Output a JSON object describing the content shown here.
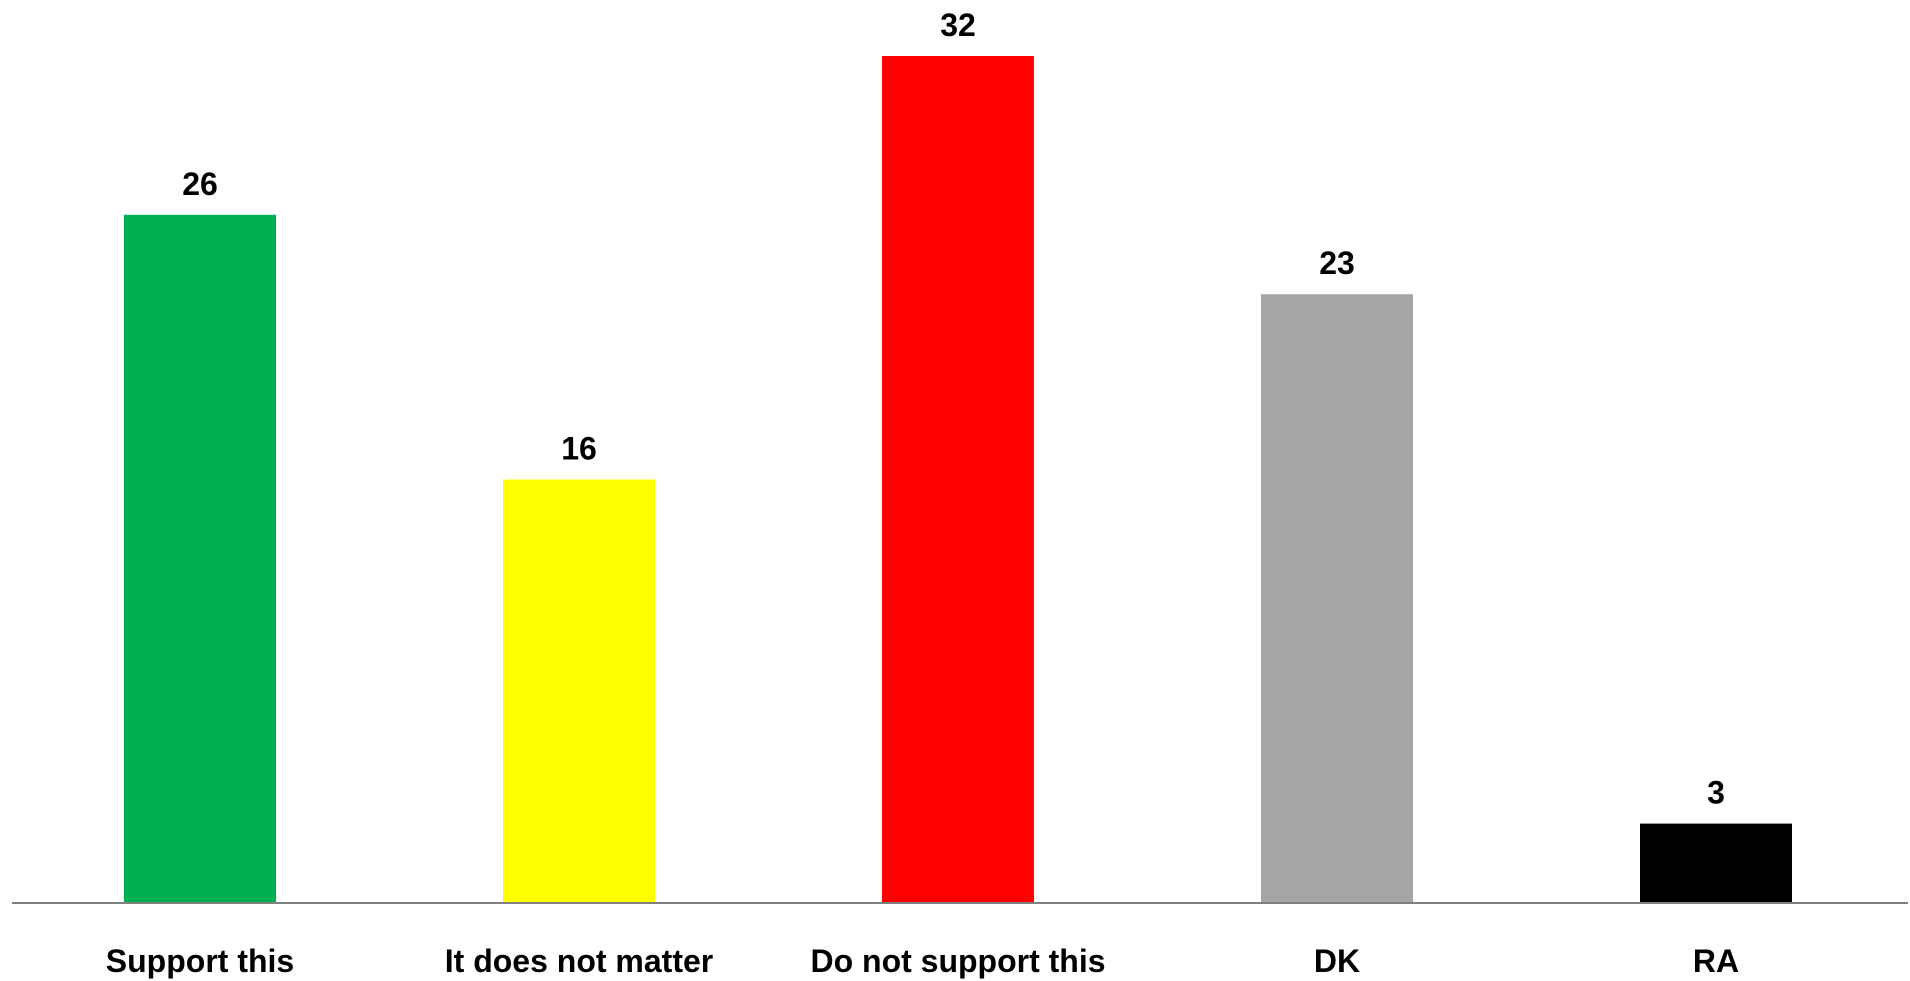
{
  "chart_data": {
    "type": "bar",
    "categories": [
      "Support this",
      "It does not matter",
      "Do not support this",
      "DK",
      "RA"
    ],
    "values": [
      26,
      16,
      32,
      23,
      3
    ],
    "colors": [
      "#00b050",
      "#ffff00",
      "#ff0000",
      "#a6a6a6",
      "#000000"
    ],
    "ylim": [
      0,
      32
    ],
    "grid": false,
    "legend": "none",
    "data_labels": true,
    "axis_color": "#808080"
  }
}
